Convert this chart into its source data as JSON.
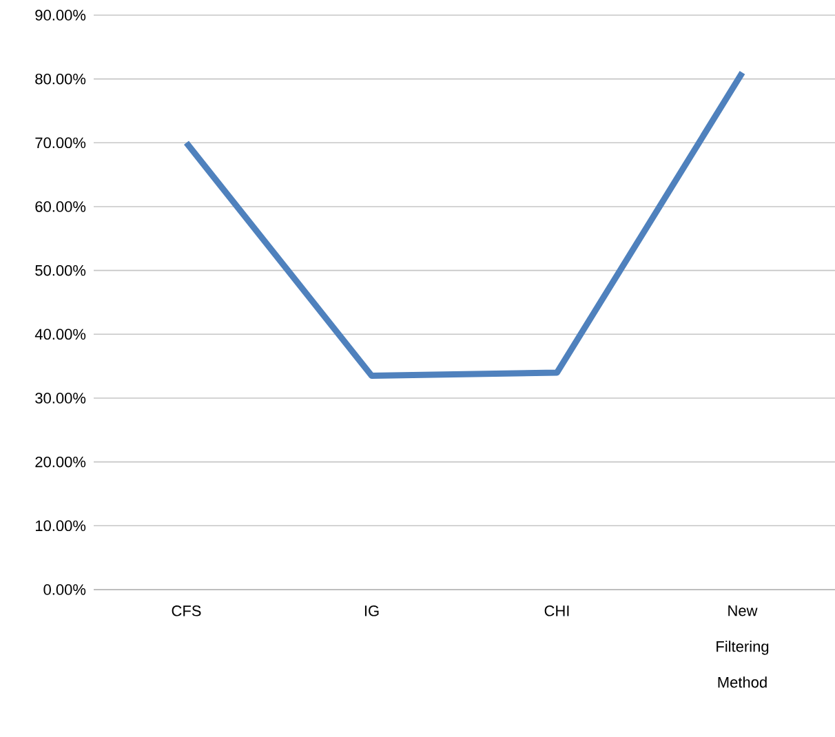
{
  "chart_data": {
    "type": "line",
    "categories": [
      "CFS",
      "IG",
      "CHI",
      "New Filtering Method"
    ],
    "series": [
      {
        "color": "#4f81bd",
        "values": [
          70,
          33.5,
          34,
          81
        ]
      }
    ],
    "ylim": [
      0,
      90
    ],
    "yticks": [
      {
        "value": 0,
        "label": "0.00%"
      },
      {
        "value": 10,
        "label": "10.00%"
      },
      {
        "value": 20,
        "label": "20.00%"
      },
      {
        "value": 30,
        "label": "30.00%"
      },
      {
        "value": 40,
        "label": "40.00%"
      },
      {
        "value": 50,
        "label": "50.00%"
      },
      {
        "value": 60,
        "label": "60.00%"
      },
      {
        "value": 70,
        "label": "70.00%"
      },
      {
        "value": 80,
        "label": "80.00%"
      },
      {
        "value": 90,
        "label": "90.00%"
      }
    ],
    "grid": "y",
    "marker": "none",
    "line_style": "solid"
  }
}
